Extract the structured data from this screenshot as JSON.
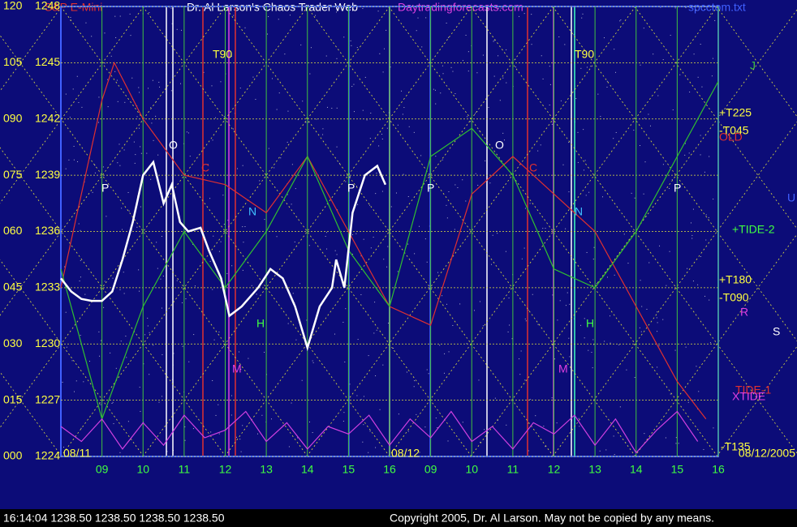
{
  "chart_data": {
    "type": "line",
    "title": "Dr. Al Larson's Chaos Trader Web",
    "subtitle": "S&P E-Mini",
    "site": "Daytradingforecasts.com",
    "file": "spcctom.txt",
    "status": "16:14:04  1238.50 1238.50 1238.50 1238.50",
    "copyright": "Copyright 2005, Dr. Al Larson. May not be copied by any means.",
    "date_labels": [
      "08/11",
      "08/12",
      "08/12/2005"
    ],
    "xlim": [
      0,
      16
    ],
    "xticks": [
      {
        "value": 1,
        "label": "09"
      },
      {
        "value": 2,
        "label": "10"
      },
      {
        "value": 3,
        "label": "11"
      },
      {
        "value": 4,
        "label": "12"
      },
      {
        "value": 5,
        "label": "13"
      },
      {
        "value": 6,
        "label": "14"
      },
      {
        "value": 7,
        "label": "15"
      },
      {
        "value": 8,
        "label": "16"
      },
      {
        "value": 9,
        "label": "09"
      },
      {
        "value": 10,
        "label": "10"
      },
      {
        "value": 11,
        "label": "11"
      },
      {
        "value": 12,
        "label": "12"
      },
      {
        "value": 13,
        "label": "13"
      },
      {
        "value": 14,
        "label": "14"
      },
      {
        "value": 15,
        "label": "15"
      },
      {
        "value": 16,
        "label": "16"
      }
    ],
    "ylim": [
      1224,
      1248
    ],
    "yticks": [
      1224,
      1227,
      1230,
      1233,
      1236,
      1239,
      1242,
      1245,
      1248
    ],
    "y2lim": [
      0,
      120
    ],
    "y2ticks": [
      {
        "value": 0,
        "label": "000"
      },
      {
        "value": 15,
        "label": "015"
      },
      {
        "value": 30,
        "label": "030"
      },
      {
        "value": 45,
        "label": "045"
      },
      {
        "value": 60,
        "label": "060"
      },
      {
        "value": 75,
        "label": "075"
      },
      {
        "value": 90,
        "label": "090"
      },
      105,
      120
    ],
    "grid": true,
    "annotations": [
      "T90",
      "T90",
      "+T225",
      "-T045",
      "OLD",
      "+TIDE-2",
      "+T180",
      "-T090",
      "TIDE-1",
      "XTIDE",
      "-T135",
      "P",
      "P",
      "P",
      "P",
      "O",
      "O",
      "C",
      "C",
      "N",
      "N",
      "H",
      "H",
      "M",
      "M",
      "J",
      "R",
      "S",
      "U"
    ],
    "series": [
      {
        "color": "#ffffff",
        "x": [
          0,
          0.25,
          0.5,
          0.75,
          1,
          1.25,
          1.5,
          1.75,
          2,
          2.25,
          2.5,
          2.7,
          2.9,
          3.1,
          3.4,
          3.6,
          3.9,
          4.1,
          4.4,
          4.8,
          5.1,
          5.4,
          5.7,
          6.0,
          6.3,
          6.6,
          6.7,
          6.9,
          7.1,
          7.4,
          7.7,
          7.9
        ],
        "values": [
          1233.5,
          1232.8,
          1232.4,
          1232.3,
          1232.3,
          1232.8,
          1234.5,
          1236.5,
          1239.0,
          1239.7,
          1237.5,
          1238.5,
          1236.5,
          1236.0,
          1236.2,
          1235.0,
          1233.5,
          1231.5,
          1232.0,
          1233.0,
          1234.0,
          1233.5,
          1232.0,
          1229.8,
          1232.0,
          1233.0,
          1234.5,
          1233.0,
          1237.0,
          1239.0,
          1239.5,
          1238.5
        ]
      },
      {
        "color": "#e03030",
        "x": [
          0,
          1,
          1.3,
          2,
          3,
          4,
          5,
          6,
          7,
          8,
          9,
          10,
          11,
          12,
          13,
          14,
          15,
          15.7
        ],
        "values": [
          1233,
          1243,
          1245,
          1242,
          1239,
          1238.5,
          1237,
          1240,
          1236,
          1232,
          1231,
          1238,
          1240,
          1238,
          1236,
          1232,
          1228,
          1226
        ]
      },
      {
        "color": "#30c030",
        "x": [
          0,
          1,
          2,
          3,
          4,
          5,
          6,
          7,
          8,
          9,
          10,
          11,
          12,
          13,
          14,
          15,
          16
        ],
        "values": [
          1234,
          1226,
          1232,
          1236,
          1233,
          1236,
          1240,
          1235,
          1232,
          1240,
          1241.5,
          1239,
          1234,
          1233,
          1236,
          1240,
          1244
        ]
      },
      {
        "color": "#d040e0",
        "axis": "y2",
        "x": [
          0,
          0.5,
          1,
          1.5,
          2,
          2.5,
          3,
          3.5,
          4,
          4.5,
          5,
          5.5,
          6,
          6.5,
          7,
          7.5,
          8,
          8.5,
          9,
          9.5,
          10,
          10.5,
          11,
          11.5,
          12,
          12.5,
          13,
          13.5,
          14,
          14.5,
          15,
          15.5
        ],
        "values": [
          8,
          4,
          10,
          2,
          9,
          3,
          11,
          5,
          7,
          12,
          4,
          9,
          2,
          8,
          6,
          11,
          3,
          10,
          5,
          12,
          4,
          8,
          2,
          9,
          6,
          11,
          3,
          10,
          1,
          7,
          12,
          4
        ]
      }
    ]
  }
}
